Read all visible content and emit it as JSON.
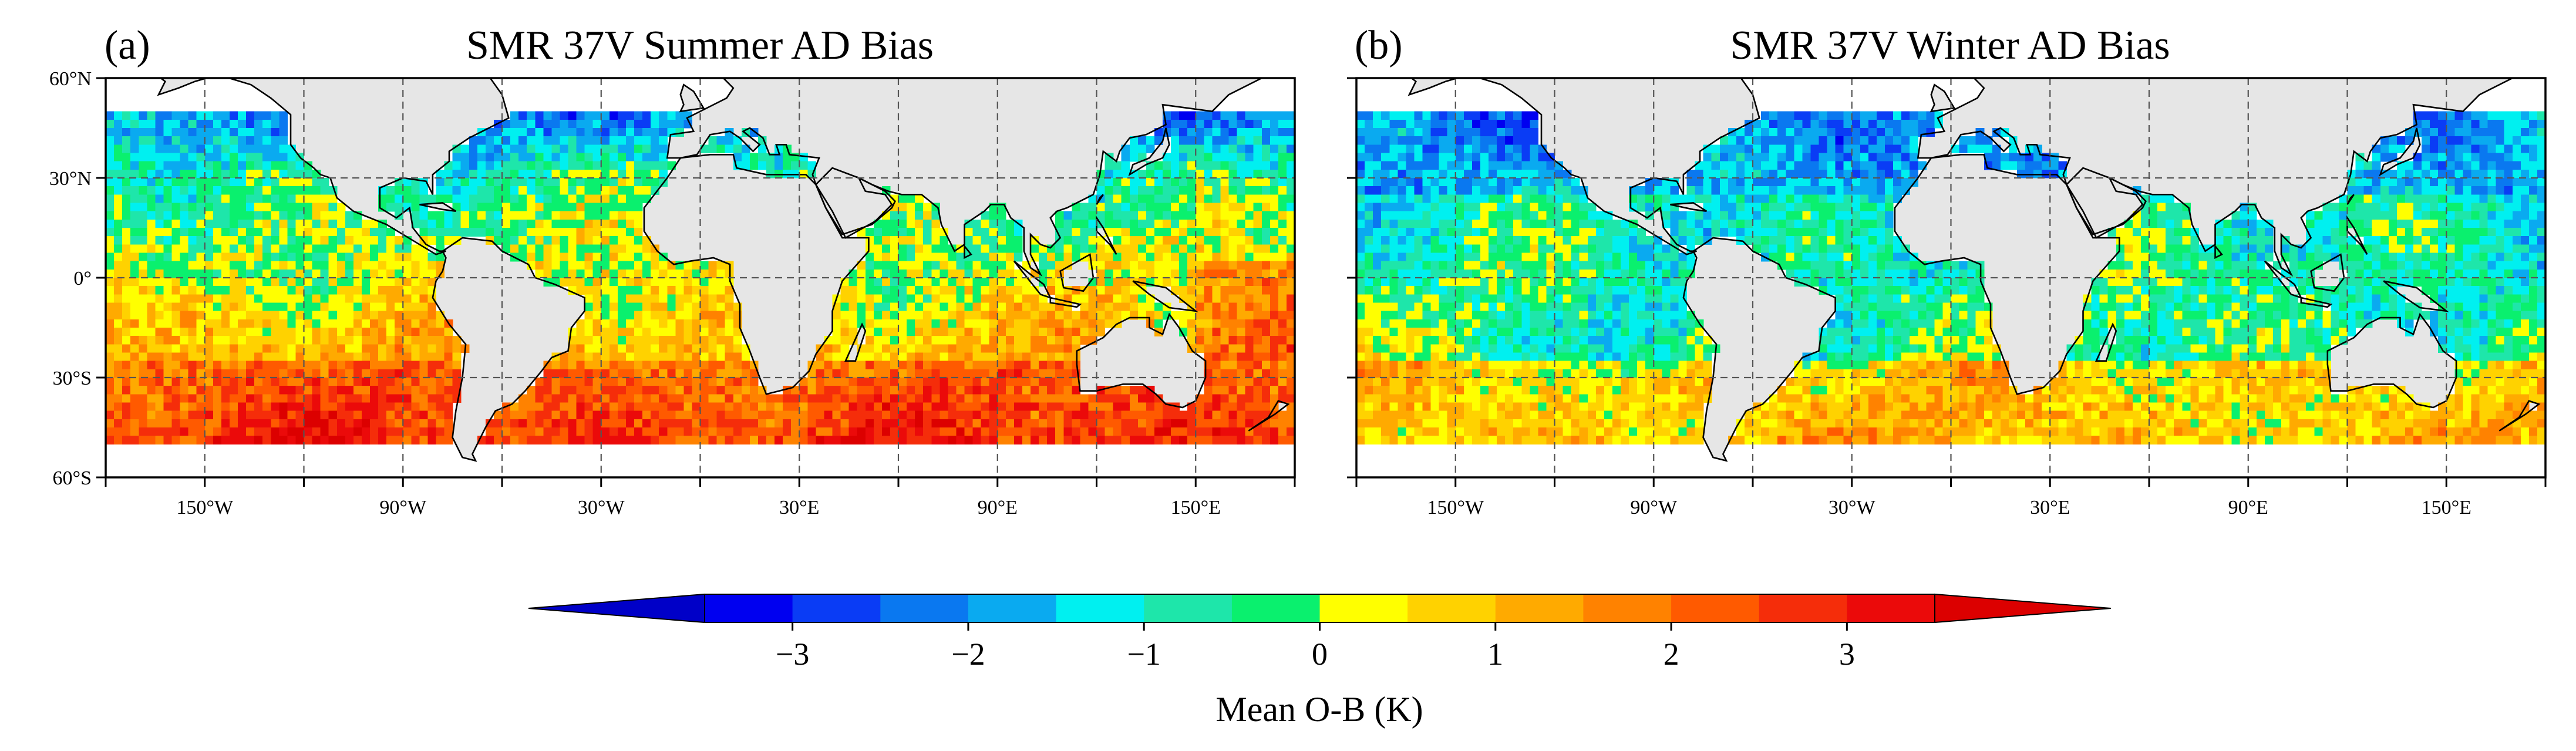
{
  "panels": [
    {
      "label": "(a)",
      "title": "SMR 37V Summer AD Bias",
      "field_pattern": "summer",
      "lat_ticks": [
        "60°N",
        "30°N",
        "0°",
        "30°S",
        "60°S"
      ],
      "lon_ticks": [
        "150°W",
        "90°W",
        "30°W",
        "30°E",
        "90°E",
        "150°E"
      ]
    },
    {
      "label": "(b)",
      "title": "SMR 37V Winter AD Bias",
      "field_pattern": "winter",
      "lat_ticks": [],
      "lon_ticks": [
        "150°W",
        "90°W",
        "30°W",
        "30°E",
        "90°E",
        "150°E"
      ]
    }
  ],
  "map_extent": {
    "lon_min": -180,
    "lon_max": 180,
    "lat_min": -60,
    "lat_max": 60,
    "data_lat_min": -50,
    "data_lat_max": 50,
    "grid_lon_step": 30,
    "grid_lat_step": 30
  },
  "colorbar": {
    "label": "Mean O-B (K)",
    "ticks": [
      "−3",
      "−2",
      "−1",
      "0",
      "1",
      "2",
      "3"
    ],
    "tick_values": [
      -3,
      -2,
      -1,
      0,
      1,
      2,
      3
    ],
    "bounds": [
      -3.5,
      3.5
    ],
    "step": 0.5,
    "extend": "both",
    "colors": [
      "#0000f0",
      "#0a3cf5",
      "#0a78f0",
      "#0aaaf0",
      "#00f0f0",
      "#1ee6aa",
      "#0af06e",
      "#ffff00",
      "#ffd200",
      "#ffaa00",
      "#ff8200",
      "#ff5a00",
      "#f52d0a",
      "#eb0a0a"
    ],
    "under_color": "#0000c8",
    "over_color": "#dc0000"
  },
  "colors": {
    "land": "#e6e6e6",
    "coast": "#000000",
    "grid": "#555555"
  }
}
